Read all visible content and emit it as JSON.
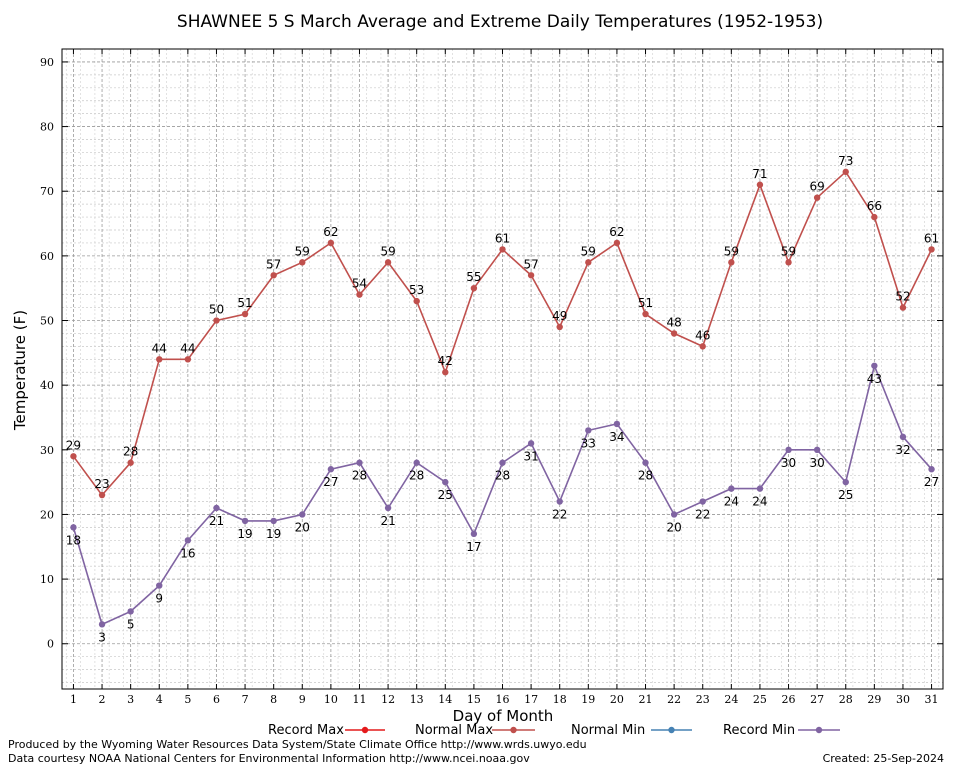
{
  "chart_data": {
    "type": "line",
    "title": "SHAWNEE 5 S March Average and Extreme Daily Temperatures (1952-1953)",
    "xlabel": "Day of Month",
    "ylabel": "Temperature (F)",
    "xlim": [
      0.6,
      31.4
    ],
    "ylim": [
      -7,
      92
    ],
    "yticks": [
      0,
      10,
      20,
      30,
      40,
      50,
      60,
      70,
      80,
      90
    ],
    "x": [
      1,
      2,
      3,
      4,
      5,
      6,
      7,
      8,
      9,
      10,
      11,
      12,
      13,
      14,
      15,
      16,
      17,
      18,
      19,
      20,
      21,
      22,
      23,
      24,
      25,
      26,
      27,
      28,
      29,
      30,
      31
    ],
    "grid": true,
    "legend_position": "bottom",
    "legend": [
      {
        "name": "Record Max",
        "color": "#e41a1c"
      },
      {
        "name": "Normal Max",
        "color": "#c0504d"
      },
      {
        "name": "Normal Min",
        "color": "#4682b4"
      },
      {
        "name": "Record Min",
        "color": "#8064a2"
      }
    ],
    "series": [
      {
        "name": "Normal Max",
        "color": "#c0504d",
        "label_position": "above",
        "values": [
          29,
          23,
          28,
          44,
          44,
          50,
          51,
          57,
          59,
          62,
          54,
          59,
          53,
          42,
          55,
          61,
          57,
          49,
          59,
          62,
          51,
          48,
          46,
          59,
          71,
          59,
          69,
          73,
          66,
          52,
          61
        ]
      },
      {
        "name": "Record Min",
        "color": "#8064a2",
        "label_position": "below",
        "values": [
          18,
          3,
          5,
          9,
          16,
          21,
          19,
          19,
          20,
          27,
          28,
          21,
          28,
          25,
          17,
          28,
          31,
          22,
          33,
          34,
          28,
          20,
          22,
          24,
          24,
          30,
          30,
          25,
          43,
          32,
          27
        ]
      }
    ]
  },
  "footer": {
    "credit_line1": "Produced by the Wyoming Water Resources Data System/State Climate Office http://www.wrds.uwyo.edu",
    "credit_line2": "Data courtesy NOAA National Centers for Environmental Information http://www.ncei.noaa.gov",
    "created": "Created:  25-Sep-2024"
  }
}
